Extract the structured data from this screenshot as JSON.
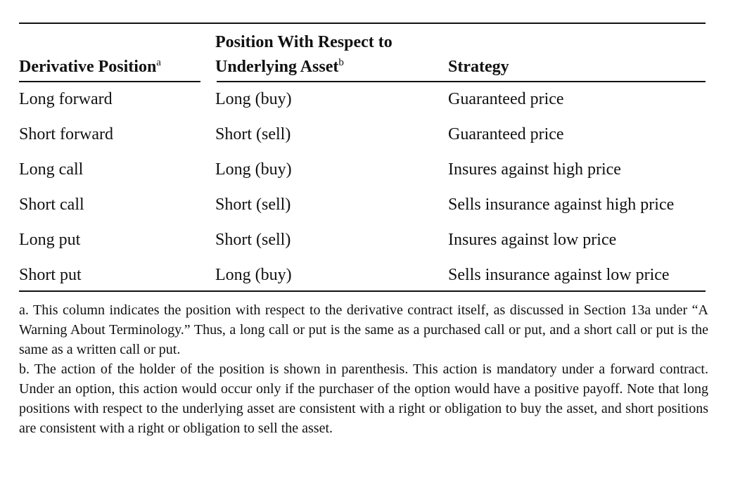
{
  "table": {
    "headers": {
      "col1": "Derivative Position",
      "col1_sup": "a",
      "col2_line1": "Position With Respect to",
      "col2_line2": "Underlying Asset",
      "col2_sup": "b",
      "col3": "Strategy"
    },
    "rows": [
      {
        "derivative": "Long forward",
        "position": "Long (buy)",
        "strategy": "Guaranteed price"
      },
      {
        "derivative": "Short forward",
        "position": "Short (sell)",
        "strategy": "Guaranteed price"
      },
      {
        "derivative": "Long call",
        "position": "Long (buy)",
        "strategy": "Insures against high price"
      },
      {
        "derivative": "Short call",
        "position": "Short (sell)",
        "strategy": "Sells insurance against high price"
      },
      {
        "derivative": "Long put",
        "position": "Short (sell)",
        "strategy": "Insures against low price"
      },
      {
        "derivative": "Short put",
        "position": "Long (buy)",
        "strategy": "Sells insurance against low price"
      }
    ]
  },
  "footnotes": {
    "a": "a. This column indicates the position with respect to the derivative contract itself, as discussed in Section 13a under “A Warning About Terminology.” Thus, a long call or put is the same as a purchased call or put, and a short call or put is the same as a written call or put.",
    "b": "b. The action of the holder of the position is shown in parenthesis. This action is mandatory under a forward contract. Under an option, this action would occur only if the purchaser of the option would have a positive payoff. Note that long positions with respect to the underlying asset are consistent with a right or obligation to buy the asset, and short positions are consistent with a right or obligation to sell the asset."
  }
}
